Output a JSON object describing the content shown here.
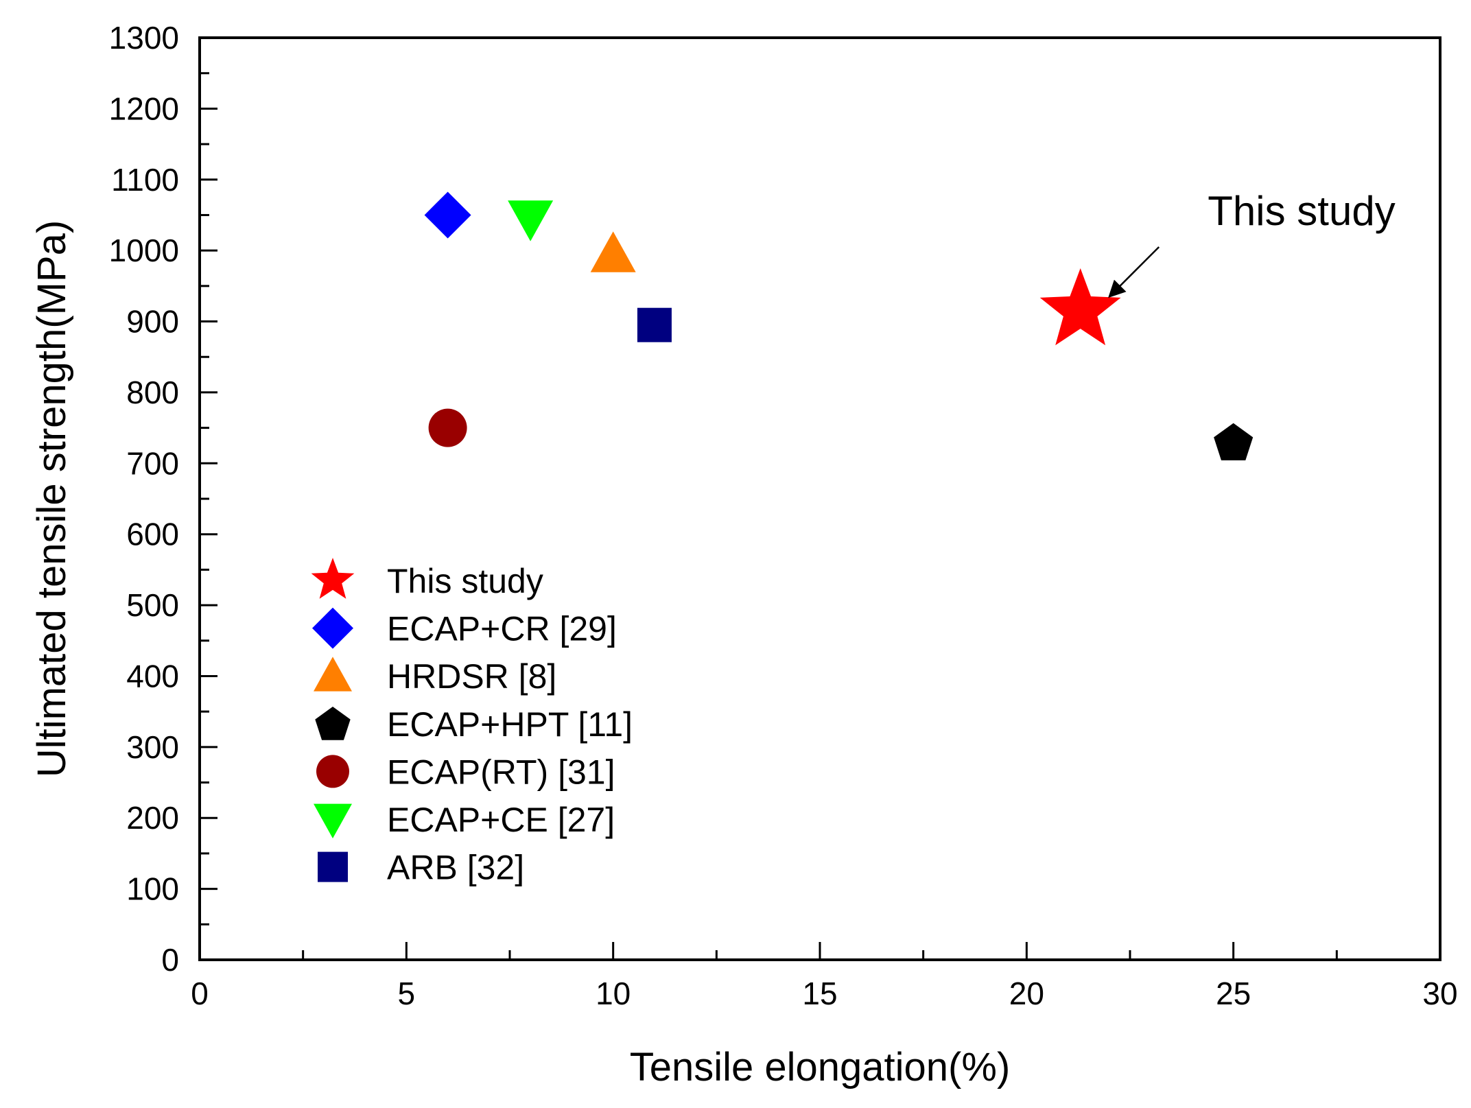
{
  "chart_data": {
    "type": "scatter",
    "title": "",
    "xlabel": "Tensile elongation(%)",
    "ylabel": "Ultimated tensile strength(MPa)",
    "xlim": [
      0,
      30
    ],
    "ylim": [
      0,
      1300
    ],
    "xticks": [
      0,
      5,
      10,
      15,
      20,
      25,
      30
    ],
    "yticks": [
      0,
      100,
      200,
      300,
      400,
      500,
      600,
      700,
      800,
      900,
      1000,
      1100,
      1200,
      1300
    ],
    "x_tick_labels": [
      "0",
      "5",
      "10",
      "15",
      "20",
      "25",
      "30"
    ],
    "y_tick_labels": [
      "0",
      "100",
      "200",
      "300",
      "400",
      "500",
      "600",
      "700",
      "800",
      "900",
      "1000",
      "1100",
      "1200",
      "1300"
    ],
    "grid": false,
    "legend_position": "lower-left",
    "series": [
      {
        "name": "This study",
        "marker": "star",
        "color": "#ff0000",
        "x": 21.3,
        "y": 915
      },
      {
        "name": "ECAP+CR [29]",
        "marker": "diamond",
        "color": "#0000ff",
        "x": 6,
        "y": 1050
      },
      {
        "name": "HRDSR [8]",
        "marker": "triangle-up",
        "color": "#ff7f00",
        "x": 10,
        "y": 995
      },
      {
        "name": "ECAP+HPT [11]",
        "marker": "pentagon",
        "color": "#000000",
        "x": 25,
        "y": 730
      },
      {
        "name": "ECAP(RT) [31]",
        "marker": "circle",
        "color": "#990000",
        "x": 6,
        "y": 750
      },
      {
        "name": "ECAP+CE [27]",
        "marker": "triangle-down",
        "color": "#00ff00",
        "x": 8,
        "y": 1045
      },
      {
        "name": "ARB [32]",
        "marker": "square",
        "color": "#000080",
        "x": 11,
        "y": 895
      }
    ],
    "annotations": [
      {
        "text": "This study",
        "arrow_from": [
          23.2,
          1005
        ],
        "arrow_to": [
          22.0,
          935
        ]
      }
    ]
  }
}
